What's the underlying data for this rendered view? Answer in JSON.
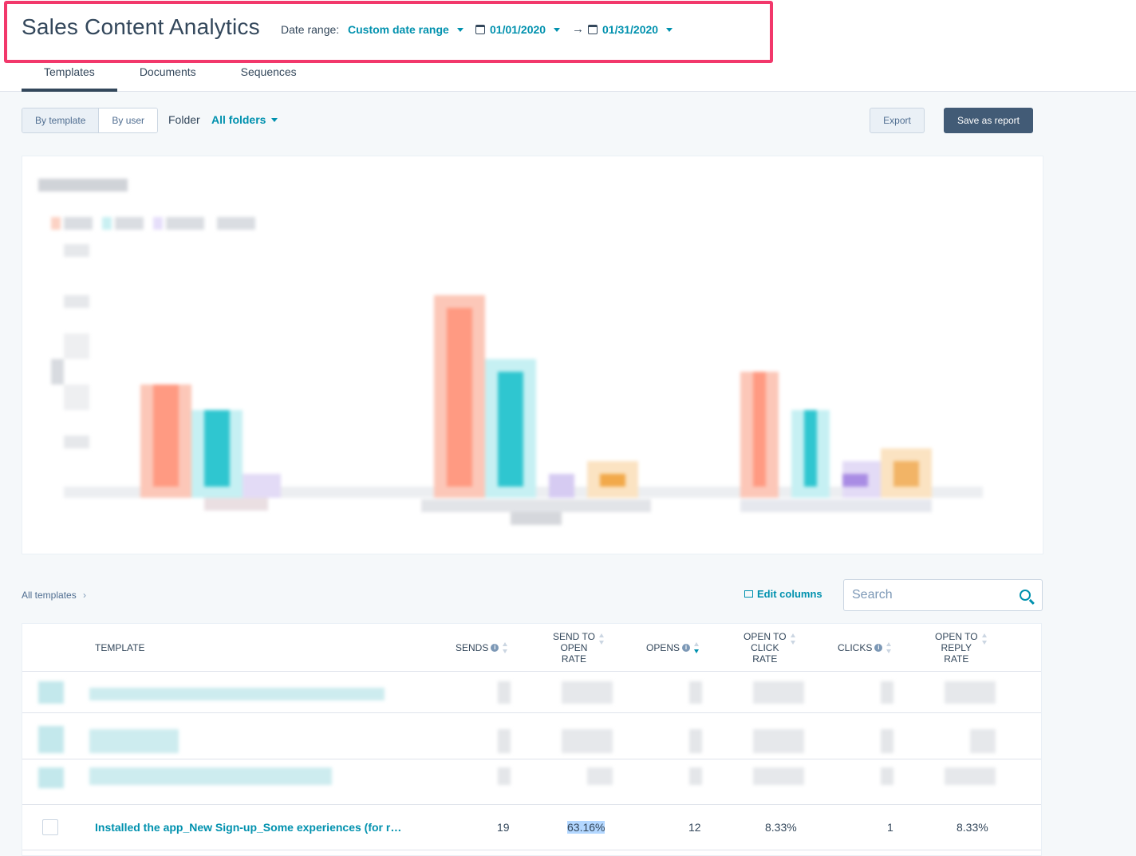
{
  "header": {
    "title": "Sales Content Analytics",
    "date_range_label": "Date range:",
    "date_range_value": "Custom date range",
    "start_date": "01/01/2020",
    "end_date": "01/31/2020",
    "arrow": "→"
  },
  "tabs": [
    {
      "label": "Templates",
      "active": true
    },
    {
      "label": "Documents",
      "active": false
    },
    {
      "label": "Sequences",
      "active": false
    }
  ],
  "toolbar": {
    "view_options": [
      "By template",
      "By user"
    ],
    "selected_view": "By template",
    "folder_label": "Folder",
    "folder_value": "All folders",
    "export_label": "Export",
    "save_label": "Save as report"
  },
  "chart_data": {
    "type": "bar",
    "note_visible": "chart is pixelated/obscured",
    "colors": [
      "#ff8f73",
      "#00bda5",
      "#b9a7e3",
      "#f5c26b"
    ],
    "bar_colors": {
      "series_a": "#ff8f73",
      "series_b": "#2fc6d0",
      "series_c": "#b9a7e3",
      "series_d": "#f2a94a"
    }
  },
  "table": {
    "breadcrumb": "All templates",
    "edit_columns_label": "Edit columns",
    "search_placeholder": "Search",
    "columns": {
      "template": "TEMPLATE",
      "sends": "SENDS",
      "send_to_open_1": "SEND TO",
      "send_to_open_2": "OPEN",
      "send_to_open_3": "RATE",
      "opens": "OPENS",
      "open_to_click_1": "OPEN TO",
      "open_to_click_2": "CLICK",
      "open_to_click_3": "RATE",
      "clicks": "CLICKS",
      "open_to_reply_1": "OPEN TO",
      "open_to_reply_2": "REPLY",
      "open_to_reply_3": "RATE"
    },
    "visible_row": {
      "template": "Installed the app_New Sign-up_Some experiences (for r…",
      "sends": "19",
      "send_to_open_rate": "63.16%",
      "opens": "12",
      "open_to_click_rate": "8.33%",
      "clicks": "1",
      "open_to_reply_rate": "8.33%"
    }
  }
}
